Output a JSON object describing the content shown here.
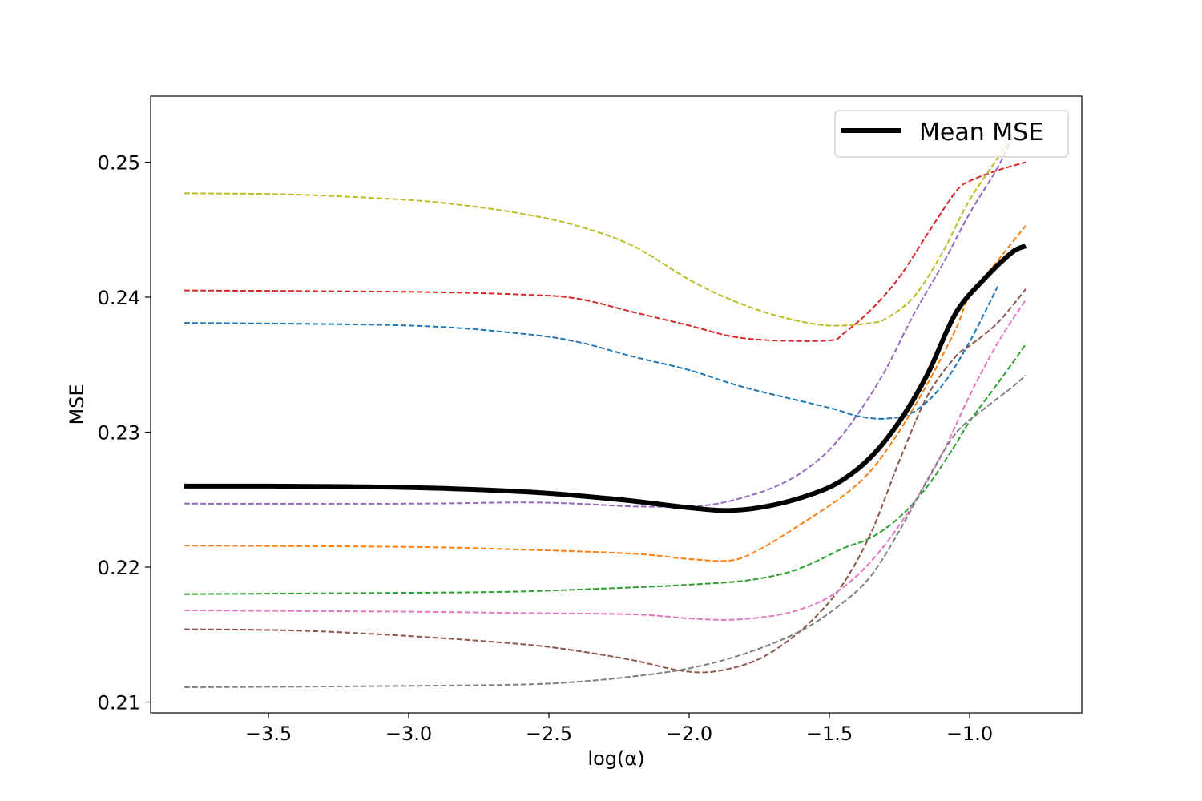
{
  "chart_data": {
    "type": "line",
    "title": "",
    "xlabel": "log(α)",
    "ylabel": "MSE",
    "xlim": [
      -3.92,
      -0.6
    ],
    "ylim": [
      0.2092,
      0.2549
    ],
    "xticks": [
      -3.5,
      -3.0,
      -2.5,
      -2.0,
      -1.5,
      -1.0
    ],
    "xtick_labels": [
      "−3.5",
      "−3.0",
      "−2.5",
      "−2.0",
      "−1.5",
      "−1.0"
    ],
    "yticks": [
      0.21,
      0.22,
      0.23,
      0.24,
      0.25
    ],
    "ytick_labels": [
      "0.21",
      "0.22",
      "0.23",
      "0.24",
      "0.25"
    ],
    "grid": false,
    "legend": {
      "placement": "top-right",
      "entries": [
        "Mean MSE"
      ]
    },
    "mean_series": {
      "name": "Mean MSE",
      "color": "#000000",
      "style": "solid",
      "x": [
        -3.8,
        -3.5,
        -3.0,
        -2.6,
        -2.4,
        -2.2,
        -2.0,
        -1.85,
        -1.7,
        -1.55,
        -1.45,
        -1.35,
        -1.25,
        -1.15,
        -1.05,
        -0.95,
        -0.85,
        -0.8
      ],
      "y": [
        0.226,
        0.226,
        0.2259,
        0.2256,
        0.2253,
        0.2249,
        0.2244,
        0.2242,
        0.2246,
        0.2255,
        0.2265,
        0.2282,
        0.2308,
        0.2343,
        0.2388,
        0.2413,
        0.2433,
        0.2438
      ]
    },
    "series": [
      {
        "color": "#1f77b4",
        "style": "dashed",
        "x": [
          -3.8,
          -3.0,
          -2.6,
          -2.4,
          -2.2,
          -2.0,
          -1.8,
          -1.5,
          -1.4,
          -1.3,
          -1.2,
          -1.1,
          -1.0,
          -0.9
        ],
        "y": [
          0.2381,
          0.2379,
          0.2373,
          0.2367,
          0.2356,
          0.2346,
          0.2333,
          0.2318,
          0.2312,
          0.231,
          0.2315,
          0.2334,
          0.2367,
          0.2408
        ]
      },
      {
        "color": "#ff7f0e",
        "style": "dashed",
        "x": [
          -3.8,
          -3.0,
          -2.6,
          -2.2,
          -2.0,
          -1.85,
          -1.75,
          -1.6,
          -1.45,
          -1.35,
          -1.25,
          -1.15,
          -1.05,
          -1.0,
          -0.9,
          -0.8
        ],
        "y": [
          0.2216,
          0.2215,
          0.2213,
          0.221,
          0.2206,
          0.2205,
          0.2213,
          0.2232,
          0.2253,
          0.2272,
          0.2301,
          0.2336,
          0.2376,
          0.2401,
          0.2427,
          0.2453
        ]
      },
      {
        "color": "#2ca02c",
        "style": "dashed",
        "x": [
          -3.8,
          -3.0,
          -2.6,
          -2.2,
          -2.0,
          -1.8,
          -1.65,
          -1.55,
          -1.45,
          -1.35,
          -1.25,
          -1.15,
          -1.05,
          -1.0,
          -0.9,
          -0.8
        ],
        "y": [
          0.218,
          0.2181,
          0.2182,
          0.2185,
          0.2187,
          0.219,
          0.2196,
          0.2204,
          0.2214,
          0.2222,
          0.2237,
          0.226,
          0.2291,
          0.2308,
          0.2336,
          0.2365
        ]
      },
      {
        "color": "#d62728",
        "style": "dashed",
        "x": [
          -3.8,
          -3.0,
          -2.6,
          -2.4,
          -2.2,
          -2.0,
          -1.85,
          -1.7,
          -1.5,
          -1.45,
          -1.35,
          -1.25,
          -1.15,
          -1.05,
          -1.0,
          -0.9,
          -0.8
        ],
        "y": [
          0.2405,
          0.2404,
          0.2402,
          0.2399,
          0.2389,
          0.2379,
          0.2371,
          0.2368,
          0.2368,
          0.2373,
          0.2391,
          0.2415,
          0.2447,
          0.2478,
          0.2486,
          0.2494,
          0.25
        ]
      },
      {
        "color": "#9467bd",
        "style": "dashed",
        "x": [
          -3.8,
          -3.0,
          -2.6,
          -2.4,
          -2.2,
          -2.0,
          -1.9,
          -1.8,
          -1.7,
          -1.6,
          -1.5,
          -1.4,
          -1.3,
          -1.2,
          -1.1,
          -1.0,
          -0.9,
          -0.85
        ],
        "y": [
          0.2247,
          0.2247,
          0.2248,
          0.2247,
          0.2245,
          0.2245,
          0.2247,
          0.2252,
          0.2259,
          0.227,
          0.2287,
          0.2313,
          0.2346,
          0.2387,
          0.2423,
          0.2462,
          0.2496,
          0.2518
        ]
      },
      {
        "color": "#8c564b",
        "style": "dashed",
        "x": [
          -3.8,
          -3.4,
          -3.0,
          -2.6,
          -2.4,
          -2.2,
          -2.05,
          -1.95,
          -1.85,
          -1.75,
          -1.65,
          -1.55,
          -1.45,
          -1.35,
          -1.25,
          -1.15,
          -1.05,
          -1.0,
          -0.9,
          -0.8
        ],
        "y": [
          0.2154,
          0.2153,
          0.2149,
          0.2143,
          0.2138,
          0.2131,
          0.2124,
          0.2122,
          0.2125,
          0.2132,
          0.2145,
          0.2163,
          0.2188,
          0.2226,
          0.2279,
          0.2327,
          0.2356,
          0.2364,
          0.2381,
          0.2406
        ]
      },
      {
        "color": "#e377c2",
        "style": "dashed",
        "x": [
          -3.8,
          -3.0,
          -2.6,
          -2.2,
          -2.0,
          -1.85,
          -1.7,
          -1.6,
          -1.5,
          -1.4,
          -1.3,
          -1.2,
          -1.1,
          -1.0,
          -0.9,
          -0.8
        ],
        "y": [
          0.2168,
          0.2167,
          0.2166,
          0.2165,
          0.2162,
          0.2161,
          0.2164,
          0.2169,
          0.2178,
          0.2194,
          0.2217,
          0.2247,
          0.2283,
          0.2327,
          0.2366,
          0.2398
        ]
      },
      {
        "color": "#7f7f7f",
        "style": "dashed",
        "x": [
          -3.8,
          -3.0,
          -2.6,
          -2.4,
          -2.2,
          -2.0,
          -1.8,
          -1.6,
          -1.45,
          -1.35,
          -1.25,
          -1.15,
          -1.05,
          -0.95,
          -0.85,
          -0.8
        ],
        "y": [
          0.2111,
          0.2112,
          0.2113,
          0.2115,
          0.2119,
          0.2125,
          0.2136,
          0.2153,
          0.2174,
          0.2194,
          0.2227,
          0.2265,
          0.2299,
          0.2317,
          0.2333,
          0.2342
        ]
      },
      {
        "color": "#bcbd22",
        "style": "dashed",
        "x": [
          -3.8,
          -3.4,
          -3.0,
          -2.8,
          -2.6,
          -2.4,
          -2.2,
          -2.0,
          -1.85,
          -1.7,
          -1.55,
          -1.45,
          -1.35,
          -1.3,
          -1.2,
          -1.1,
          -1.0,
          -0.9,
          -0.85
        ],
        "y": [
          0.2477,
          0.2476,
          0.2472,
          0.2468,
          0.2462,
          0.2453,
          0.2438,
          0.2413,
          0.2398,
          0.2387,
          0.238,
          0.2379,
          0.2381,
          0.2384,
          0.24,
          0.2432,
          0.2472,
          0.2503,
          0.252
        ]
      }
    ]
  }
}
